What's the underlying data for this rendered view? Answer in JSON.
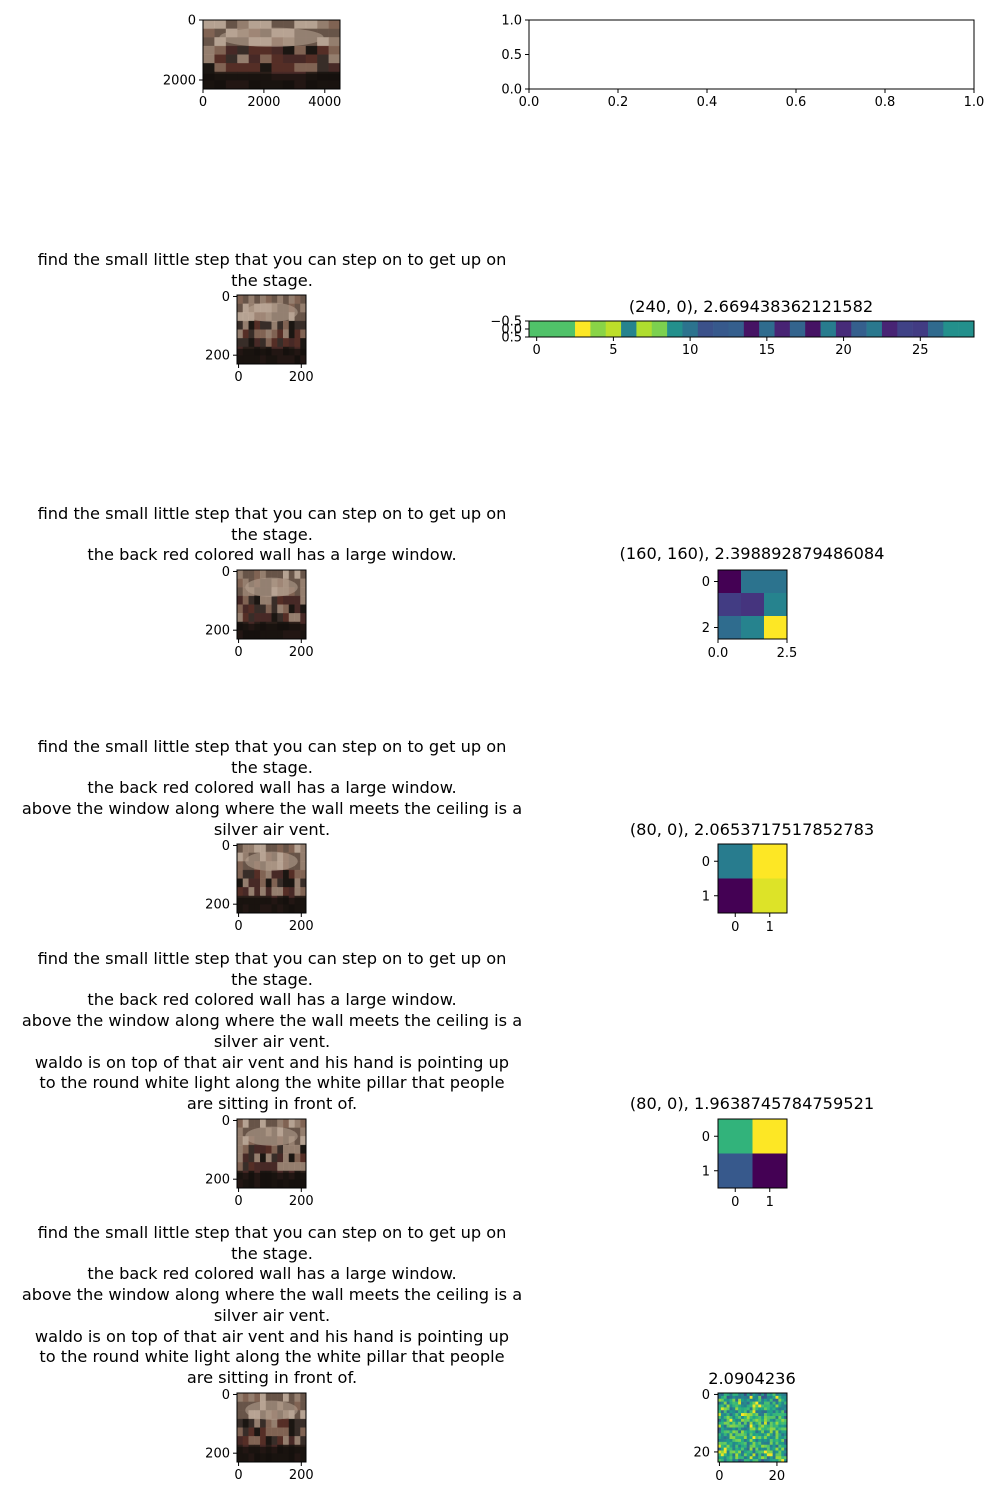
{
  "figure": {
    "colors": {
      "viridis": [
        "#440154",
        "#482878",
        "#3e4989",
        "#31688e",
        "#26828e",
        "#1f9e89",
        "#35b779",
        "#6ece58",
        "#b5de2b",
        "#fde725"
      ],
      "photo": [
        "#2a1e19",
        "#6e5a4e",
        "#a08878",
        "#4a2a28",
        "#8a6a5a",
        "#3a2f2a",
        "#c4b0a0",
        "#5a3028",
        "#1a1512"
      ]
    },
    "rows": [
      {
        "left": {
          "title": "",
          "axes": {
            "xticks": [
              "0",
              "2000",
              "4000"
            ],
            "yticks": [
              "0",
              "2000"
            ]
          },
          "content": "panorama image"
        },
        "right": {
          "title": "",
          "axes": {
            "xticks": [
              "0.0",
              "0.2",
              "0.4",
              "0.6",
              "0.8",
              "1.0"
            ],
            "yticks": [
              "0.0",
              "0.5",
              "1.0"
            ]
          },
          "content": "empty axes"
        }
      },
      {
        "left": {
          "title": "find the small little step that you can step on to get up on\nthe stage.",
          "axes": {
            "xticks": [
              "0",
              "200"
            ],
            "yticks": [
              "0",
              "200"
            ]
          },
          "content": "panorama image"
        },
        "right": {
          "title": "(240, 0), 2.669438362121582",
          "axes": {
            "xticks": [
              "0",
              "5",
              "10",
              "15",
              "20",
              "25"
            ],
            "yticks": [
              "−0.5",
              "0.0",
              "0.5"
            ]
          },
          "content": "heatmap"
        }
      },
      {
        "left": {
          "title": "find the small little step that you can step on to get up on\nthe stage.\nthe back red colored wall has a large window.",
          "axes": {
            "xticks": [
              "0",
              "200"
            ],
            "yticks": [
              "0",
              "200"
            ]
          },
          "content": "panorama image"
        },
        "right": {
          "title": "(160, 160), 2.398892879486084",
          "axes": {
            "xticks": [
              "0.0",
              "2.5"
            ],
            "yticks": [
              "0",
              "2"
            ]
          },
          "content": "heatmap"
        }
      },
      {
        "left": {
          "title": "find the small little step that you can step on to get up on\nthe stage.\nthe back red colored wall has a large window.\nabove the window along where the wall meets the ceiling is a\nsilver air vent.",
          "axes": {
            "xticks": [
              "0",
              "200"
            ],
            "yticks": [
              "0",
              "200"
            ]
          },
          "content": "panorama image"
        },
        "right": {
          "title": "(80, 0), 2.0653717517852783",
          "axes": {
            "xticks": [
              "0",
              "1"
            ],
            "yticks": [
              "0",
              "1"
            ]
          },
          "content": "heatmap"
        }
      },
      {
        "left": {
          "title": "find the small little step that you can step on to get up on\nthe stage.\nthe back red colored wall has a large window.\nabove the window along where the wall meets the ceiling is a\nsilver air vent.\nwaldo is on top of that air vent and his hand is pointing up\nto the round white light along the white pillar that people\nare sitting in front of.",
          "axes": {
            "xticks": [
              "0",
              "200"
            ],
            "yticks": [
              "0",
              "200"
            ]
          },
          "content": "panorama image"
        },
        "right": {
          "title": "(80, 0), 1.9638745784759521",
          "axes": {
            "xticks": [
              "0",
              "1"
            ],
            "yticks": [
              "0",
              "1"
            ]
          },
          "content": "heatmap"
        }
      },
      {
        "left": {
          "title": "find the small little step that you can step on to get up on\nthe stage.\nthe back red colored wall has a large window.\nabove the window along where the wall meets the ceiling is a\nsilver air vent.\nwaldo is on top of that air vent and his hand is pointing up\nto the round white light along the white pillar that people\nare sitting in front of.",
          "axes": {
            "xticks": [
              "0",
              "200"
            ],
            "yticks": [
              "0",
              "200"
            ]
          },
          "content": "panorama image"
        },
        "right": {
          "title": "2.0904236",
          "axes": {
            "xticks": [
              "0",
              "20"
            ],
            "yticks": [
              "0",
              "20"
            ]
          },
          "content": "heatmap"
        }
      }
    ]
  },
  "chart_data": [
    {
      "type": "heatmap",
      "title": "",
      "xlim": [
        0,
        4500
      ],
      "ylim": [
        2300,
        0
      ],
      "xticks": [
        0,
        2000,
        4000
      ],
      "yticks": [
        0,
        2000
      ]
    },
    {
      "type": "table",
      "title": "",
      "xlim": [
        0.0,
        1.0
      ],
      "ylim": [
        0.0,
        1.0
      ],
      "xticks": [
        0.0,
        0.2,
        0.4,
        0.6,
        0.8,
        1.0
      ],
      "yticks": [
        0.0,
        0.5,
        1.0
      ]
    },
    {
      "type": "heatmap",
      "title": "(240, 0), 2.669438362121582",
      "rows": 1,
      "cols": 29,
      "values": [
        [
          0.72,
          0.72,
          0.72,
          1.0,
          0.82,
          0.9,
          0.45,
          0.88,
          0.8,
          0.5,
          0.38,
          0.25,
          0.28,
          0.3,
          0.05,
          0.35,
          0.1,
          0.32,
          0.05,
          0.42,
          0.12,
          0.3,
          0.4,
          0.1,
          0.2,
          0.18,
          0.34,
          0.5,
          0.5
        ]
      ],
      "xticks": [
        0,
        5,
        10,
        15,
        20,
        25
      ],
      "yticks": [
        -0.5,
        0.0,
        0.5
      ]
    },
    {
      "type": "heatmap",
      "title": "(160, 160), 2.398892879486084",
      "rows": 3,
      "cols": 3,
      "values": [
        [
          0.0,
          0.38,
          0.38
        ],
        [
          0.18,
          0.15,
          0.45
        ],
        [
          0.35,
          0.45,
          1.0
        ]
      ],
      "xticks": [
        0.0,
        2.5
      ],
      "yticks": [
        0,
        2
      ]
    },
    {
      "type": "heatmap",
      "title": "(80, 0), 2.0653717517852783",
      "rows": 2,
      "cols": 2,
      "values": [
        [
          0.42,
          1.0
        ],
        [
          0.0,
          0.95
        ]
      ],
      "xticks": [
        0,
        1
      ],
      "yticks": [
        0,
        1
      ]
    },
    {
      "type": "heatmap",
      "title": "(80, 0), 1.9638745784759521",
      "rows": 2,
      "cols": 2,
      "values": [
        [
          0.65,
          1.0
        ],
        [
          0.28,
          0.0
        ]
      ],
      "xticks": [
        0,
        1
      ],
      "yticks": [
        0,
        1
      ]
    },
    {
      "type": "heatmap",
      "title": "2.0904236",
      "rows": 24,
      "cols": 24,
      "xticks": [
        0,
        20
      ],
      "yticks": [
        0,
        20
      ]
    }
  ]
}
